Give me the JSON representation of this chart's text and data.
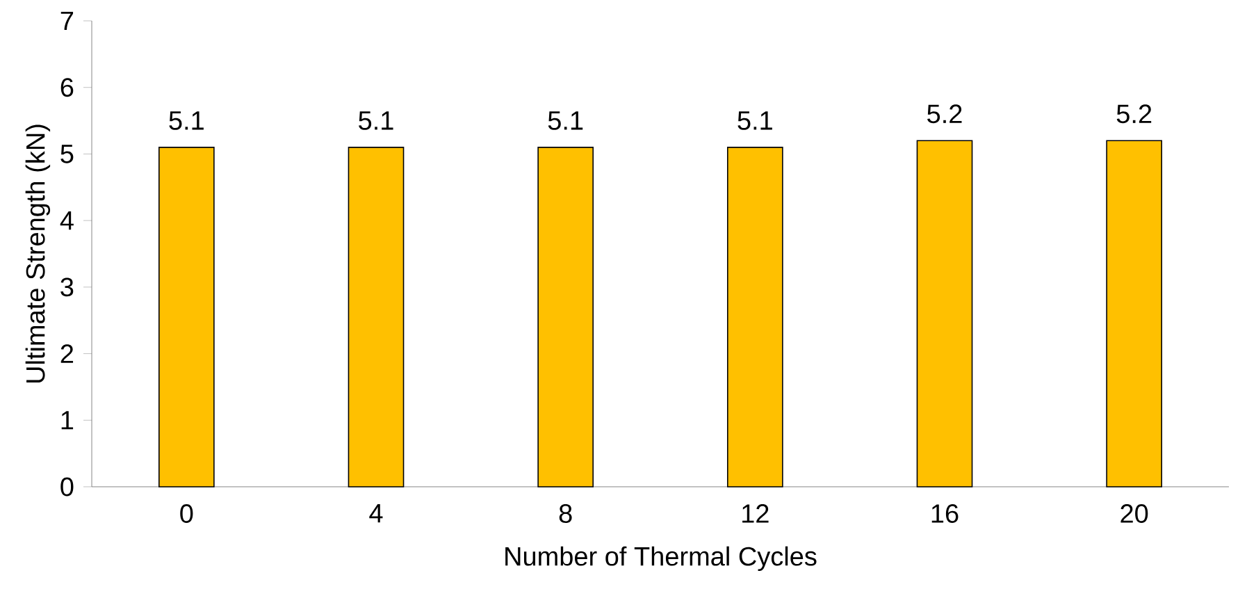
{
  "chart_data": {
    "type": "bar",
    "xlabel": "Number of Thermal Cycles",
    "ylabel": "Ultimate Strength (kN)",
    "categories": [
      "0",
      "4",
      "8",
      "12",
      "16",
      "20"
    ],
    "values": [
      5.1,
      5.1,
      5.1,
      5.1,
      5.2,
      5.2
    ],
    "color": "#ffc000",
    "ylim": [
      0,
      7
    ],
    "yticks": [
      0,
      1,
      2,
      3,
      4,
      5,
      6,
      7
    ],
    "data_labels": true
  }
}
